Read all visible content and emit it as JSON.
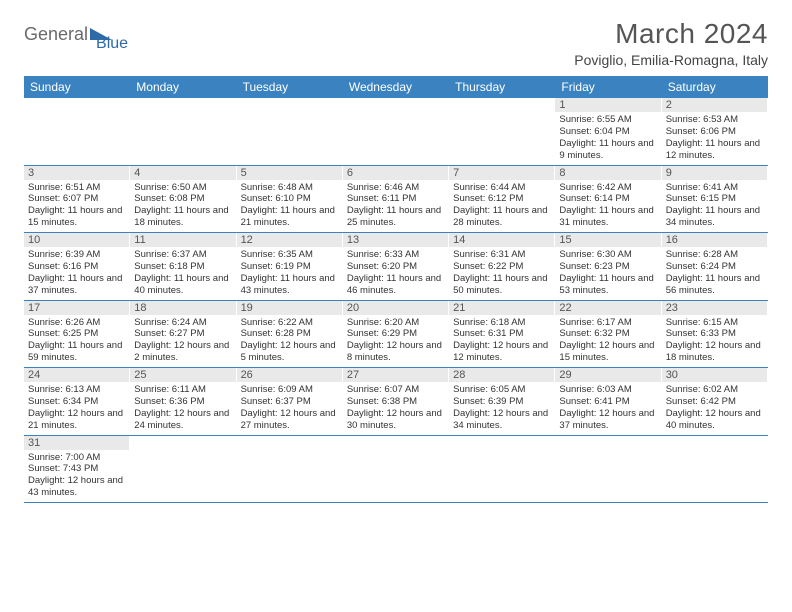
{
  "logo": {
    "text1": "General",
    "text2": "Blue",
    "color1": "#6a6a6a",
    "color2": "#2f6aa8",
    "triangle_color": "#2f6aa8"
  },
  "title": "March 2024",
  "location": "Poviglio, Emilia-Romagna, Italy",
  "colors": {
    "header_bg": "#3b83c0",
    "header_fg": "#ffffff",
    "daybar_bg": "#e9e9e9",
    "rule": "#3b83c0"
  },
  "day_headers": [
    "Sunday",
    "Monday",
    "Tuesday",
    "Wednesday",
    "Thursday",
    "Friday",
    "Saturday"
  ],
  "weeks": [
    [
      {
        "blank": true
      },
      {
        "blank": true
      },
      {
        "blank": true
      },
      {
        "blank": true
      },
      {
        "blank": true
      },
      {
        "n": "1",
        "sr": "6:55 AM",
        "ss": "6:04 PM",
        "dl": "11 hours and 9 minutes."
      },
      {
        "n": "2",
        "sr": "6:53 AM",
        "ss": "6:06 PM",
        "dl": "11 hours and 12 minutes."
      }
    ],
    [
      {
        "n": "3",
        "sr": "6:51 AM",
        "ss": "6:07 PM",
        "dl": "11 hours and 15 minutes."
      },
      {
        "n": "4",
        "sr": "6:50 AM",
        "ss": "6:08 PM",
        "dl": "11 hours and 18 minutes."
      },
      {
        "n": "5",
        "sr": "6:48 AM",
        "ss": "6:10 PM",
        "dl": "11 hours and 21 minutes."
      },
      {
        "n": "6",
        "sr": "6:46 AM",
        "ss": "6:11 PM",
        "dl": "11 hours and 25 minutes."
      },
      {
        "n": "7",
        "sr": "6:44 AM",
        "ss": "6:12 PM",
        "dl": "11 hours and 28 minutes."
      },
      {
        "n": "8",
        "sr": "6:42 AM",
        "ss": "6:14 PM",
        "dl": "11 hours and 31 minutes."
      },
      {
        "n": "9",
        "sr": "6:41 AM",
        "ss": "6:15 PM",
        "dl": "11 hours and 34 minutes."
      }
    ],
    [
      {
        "n": "10",
        "sr": "6:39 AM",
        "ss": "6:16 PM",
        "dl": "11 hours and 37 minutes."
      },
      {
        "n": "11",
        "sr": "6:37 AM",
        "ss": "6:18 PM",
        "dl": "11 hours and 40 minutes."
      },
      {
        "n": "12",
        "sr": "6:35 AM",
        "ss": "6:19 PM",
        "dl": "11 hours and 43 minutes."
      },
      {
        "n": "13",
        "sr": "6:33 AM",
        "ss": "6:20 PM",
        "dl": "11 hours and 46 minutes."
      },
      {
        "n": "14",
        "sr": "6:31 AM",
        "ss": "6:22 PM",
        "dl": "11 hours and 50 minutes."
      },
      {
        "n": "15",
        "sr": "6:30 AM",
        "ss": "6:23 PM",
        "dl": "11 hours and 53 minutes."
      },
      {
        "n": "16",
        "sr": "6:28 AM",
        "ss": "6:24 PM",
        "dl": "11 hours and 56 minutes."
      }
    ],
    [
      {
        "n": "17",
        "sr": "6:26 AM",
        "ss": "6:25 PM",
        "dl": "11 hours and 59 minutes."
      },
      {
        "n": "18",
        "sr": "6:24 AM",
        "ss": "6:27 PM",
        "dl": "12 hours and 2 minutes."
      },
      {
        "n": "19",
        "sr": "6:22 AM",
        "ss": "6:28 PM",
        "dl": "12 hours and 5 minutes."
      },
      {
        "n": "20",
        "sr": "6:20 AM",
        "ss": "6:29 PM",
        "dl": "12 hours and 8 minutes."
      },
      {
        "n": "21",
        "sr": "6:18 AM",
        "ss": "6:31 PM",
        "dl": "12 hours and 12 minutes."
      },
      {
        "n": "22",
        "sr": "6:17 AM",
        "ss": "6:32 PM",
        "dl": "12 hours and 15 minutes."
      },
      {
        "n": "23",
        "sr": "6:15 AM",
        "ss": "6:33 PM",
        "dl": "12 hours and 18 minutes."
      }
    ],
    [
      {
        "n": "24",
        "sr": "6:13 AM",
        "ss": "6:34 PM",
        "dl": "12 hours and 21 minutes."
      },
      {
        "n": "25",
        "sr": "6:11 AM",
        "ss": "6:36 PM",
        "dl": "12 hours and 24 minutes."
      },
      {
        "n": "26",
        "sr": "6:09 AM",
        "ss": "6:37 PM",
        "dl": "12 hours and 27 minutes."
      },
      {
        "n": "27",
        "sr": "6:07 AM",
        "ss": "6:38 PM",
        "dl": "12 hours and 30 minutes."
      },
      {
        "n": "28",
        "sr": "6:05 AM",
        "ss": "6:39 PM",
        "dl": "12 hours and 34 minutes."
      },
      {
        "n": "29",
        "sr": "6:03 AM",
        "ss": "6:41 PM",
        "dl": "12 hours and 37 minutes."
      },
      {
        "n": "30",
        "sr": "6:02 AM",
        "ss": "6:42 PM",
        "dl": "12 hours and 40 minutes."
      }
    ],
    [
      {
        "n": "31",
        "sr": "7:00 AM",
        "ss": "7:43 PM",
        "dl": "12 hours and 43 minutes."
      },
      {
        "blank": true
      },
      {
        "blank": true
      },
      {
        "blank": true
      },
      {
        "blank": true
      },
      {
        "blank": true
      },
      {
        "blank": true
      }
    ]
  ],
  "labels": {
    "sunrise": "Sunrise:",
    "sunset": "Sunset:",
    "daylight": "Daylight:"
  }
}
